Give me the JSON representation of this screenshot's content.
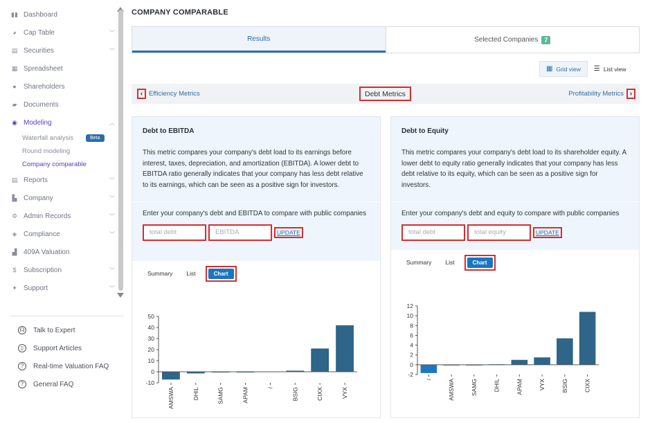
{
  "sidebar": {
    "items": [
      {
        "label": "Dashboard",
        "icon": "dashboard-icon",
        "glyph": "▮▮",
        "chevron": false
      },
      {
        "label": "Cap Table",
        "icon": "pie-chart-icon",
        "glyph": "◕",
        "chevron": true
      },
      {
        "label": "Securities",
        "icon": "document-icon",
        "glyph": "▤",
        "chevron": true
      },
      {
        "label": "Spreadsheet",
        "icon": "spreadsheet-icon",
        "glyph": "▦",
        "chevron": false
      },
      {
        "label": "Shareholders",
        "icon": "user-icon",
        "glyph": "●",
        "chevron": false
      },
      {
        "label": "Documents",
        "icon": "folder-icon",
        "glyph": "▰",
        "chevron": false
      },
      {
        "label": "Modeling",
        "icon": "lightbulb-icon",
        "glyph": "◉",
        "chevron": true,
        "active": true,
        "children": [
          {
            "label": "Waterfall analysis",
            "badge": "Beta"
          },
          {
            "label": "Round modeling"
          },
          {
            "label": "Company comparable",
            "active": true
          }
        ]
      },
      {
        "label": "Reports",
        "icon": "report-icon",
        "glyph": "▤",
        "chevron": true
      },
      {
        "label": "Company",
        "icon": "building-icon",
        "glyph": "▙",
        "chevron": true
      },
      {
        "label": "Admin Records",
        "icon": "admin-icon",
        "glyph": "⚙",
        "chevron": true
      },
      {
        "label": "Compliance",
        "icon": "shield-icon",
        "glyph": "◈",
        "chevron": true
      },
      {
        "label": "409A Valuation",
        "icon": "bar-chart-icon",
        "glyph": "▟",
        "chevron": false
      },
      {
        "label": "Subscription",
        "icon": "dollar-icon",
        "glyph": "$",
        "chevron": true
      },
      {
        "label": "Support",
        "icon": "support-icon",
        "glyph": "✦",
        "chevron": true
      }
    ],
    "help": [
      {
        "label": "Talk to Expert",
        "icon": "headset-icon",
        "glyph": "☊"
      },
      {
        "label": "Support Articles",
        "icon": "book-icon",
        "glyph": "▯"
      },
      {
        "label": "Real-time Valuation FAQ",
        "icon": "question-icon",
        "glyph": "?"
      },
      {
        "label": "General FAQ",
        "icon": "question-icon",
        "glyph": "?"
      }
    ]
  },
  "header": {
    "title": "COMPANY COMPARABLE"
  },
  "tabs": {
    "results": "Results",
    "selected": "Selected Companies",
    "selected_count": "7"
  },
  "view": {
    "grid": "Grid view",
    "list": "List view"
  },
  "metrics": {
    "prev": "Efficiency Metrics",
    "current": "Debt Metrics",
    "next": "Profitability Metrics"
  },
  "cards": [
    {
      "title": "Debt to EBITDA",
      "description": "This metric compares your company's debt load to its earnings before interest, taxes, depreciation, and amortization (EBITDA). A lower debt to EBITDA ratio generally indicates that your company has less debt relative to its earnings, which can be seen as a positive sign for investors.",
      "prompt": "Enter your company's debt and EBITDA to compare with public companies",
      "input1_placeholder": "total debt",
      "input2_placeholder": "EBITDA",
      "update": "UPDATE",
      "subtabs": {
        "summary": "Summary",
        "list": "List",
        "chart": "Chart"
      }
    },
    {
      "title": "Debt to Equity",
      "description": "This metric compares your company's debt load to its shareholder equity. A lower debt to equity ratio generally indicates that your company has less debt relative to its equity, which can be seen as a positive sign for investors.",
      "prompt": "Enter your company's debt and equity to compare with public companies",
      "input1_placeholder": "total debt",
      "input2_placeholder": "total equity",
      "update": "UPDATE",
      "subtabs": {
        "summary": "Summary",
        "list": "List",
        "chart": "Chart"
      }
    }
  ],
  "colors": {
    "bar": "#2e6589",
    "highlight": "#1f77c0",
    "accent": "#5d3fb2"
  },
  "chart_data": [
    {
      "type": "bar",
      "title": "",
      "categories": [
        "AMSWA",
        "DHIL",
        "SAMG",
        "APAM",
        "/",
        "BSIG",
        "CIXX",
        "VYX"
      ],
      "values": [
        -7,
        -1.5,
        0,
        -0.3,
        0.3,
        1,
        21,
        42
      ],
      "ylim": [
        -10,
        50
      ],
      "yticks": [
        -10,
        0,
        10,
        20,
        30,
        40,
        50
      ]
    },
    {
      "type": "bar",
      "title": "",
      "categories": [
        "/",
        "AMSWA",
        "SAMG",
        "DHIL",
        "APAM",
        "VYX",
        "BSIG",
        "CIXX"
      ],
      "values": [
        -1.7,
        0,
        0,
        0.1,
        1,
        1.5,
        5.4,
        10.8
      ],
      "highlight_index": 0,
      "ylim": [
        -2,
        12
      ],
      "yticks": [
        -2,
        0,
        2,
        4,
        6,
        8,
        10,
        12
      ]
    }
  ]
}
